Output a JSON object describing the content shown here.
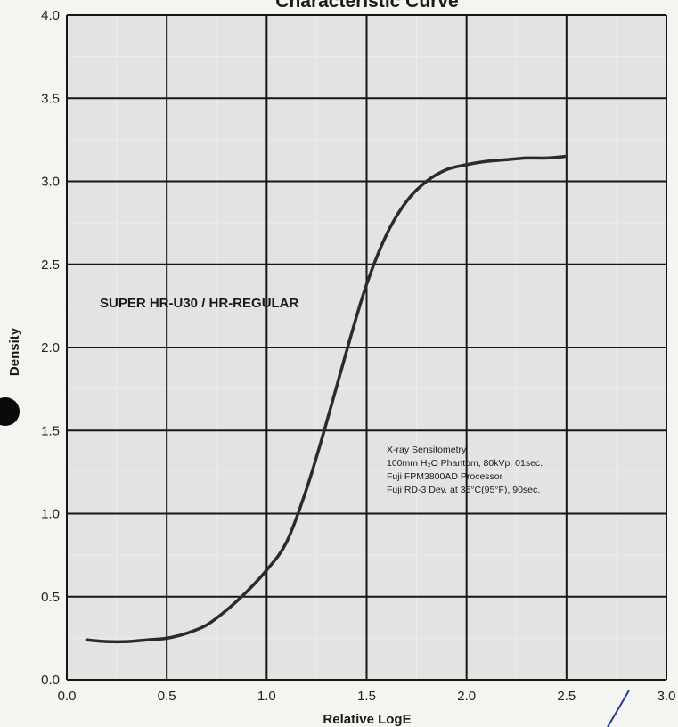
{
  "chart_data": {
    "type": "line",
    "title": "Characteristic Curve",
    "xlabel": "Relative LogE",
    "ylabel": "Density",
    "xlim": [
      0,
      3.0
    ],
    "ylim": [
      0,
      4.0
    ],
    "x_ticks": [
      "0.0",
      "0.5",
      "1.0",
      "1.5",
      "2.0",
      "2.5",
      "3.0"
    ],
    "y_ticks": [
      "0.0",
      "0.5",
      "1.0",
      "1.5",
      "2.0",
      "2.5",
      "3.0",
      "3.5",
      "4.0"
    ],
    "grid": true,
    "series": [
      {
        "name": "SUPER HR-U30 / HR-REGULAR",
        "x": [
          0.1,
          0.2,
          0.3,
          0.4,
          0.5,
          0.6,
          0.7,
          0.8,
          0.9,
          1.0,
          1.1,
          1.2,
          1.3,
          1.4,
          1.5,
          1.6,
          1.7,
          1.8,
          1.9,
          2.0,
          2.1,
          2.2,
          2.3,
          2.4,
          2.5
        ],
        "y": [
          0.24,
          0.23,
          0.23,
          0.24,
          0.25,
          0.28,
          0.33,
          0.42,
          0.53,
          0.66,
          0.83,
          1.15,
          1.55,
          1.98,
          2.38,
          2.68,
          2.88,
          3.0,
          3.07,
          3.1,
          3.12,
          3.13,
          3.14,
          3.14,
          3.15
        ]
      }
    ],
    "annotation": [
      "X-ray Sensitometry",
      "100mm H₂O Phantom, 80kVp. 01sec.",
      "Fuji FPM3800AD Processor",
      "Fuji RD-3 Dev. at 35°C(95°F), 90sec."
    ]
  },
  "colors": {
    "cell_fill": "#e3e3e1",
    "cell_line": "#ececea",
    "grid_line": "#161616",
    "curve": "#2b2b2b"
  }
}
